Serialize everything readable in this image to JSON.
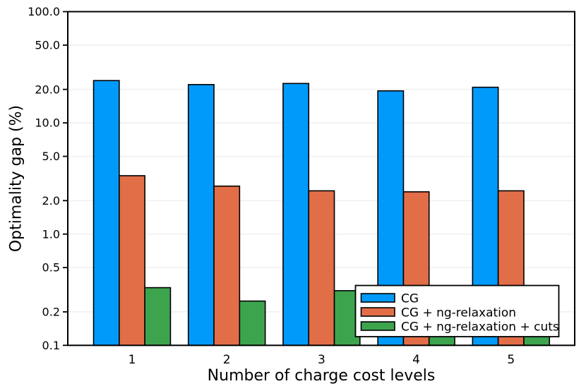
{
  "chart_data": {
    "type": "bar",
    "title": "",
    "xlabel": "Number of charge cost levels",
    "ylabel": "Optimality gap (%)",
    "yscale": "log",
    "ylim": [
      0.1,
      100
    ],
    "grid": true,
    "legend_position": "bottom-right-inside",
    "categories": [
      "1",
      "2",
      "3",
      "4",
      "5"
    ],
    "ytick_values": [
      100,
      50,
      20,
      10,
      5,
      2,
      1,
      0.5,
      0.2,
      0.1
    ],
    "ytick_labels": [
      "100.0",
      "50.0",
      "20.0",
      "10.0",
      "5.0",
      "2.0",
      "1.0",
      "0.5",
      "0.2",
      "0.1"
    ],
    "series": [
      {
        "name": "CG",
        "color": "#009AFA",
        "values": [
          24.0,
          22.1,
          22.6,
          19.4,
          20.9
        ]
      },
      {
        "name": "CG + ng-relaxation",
        "color": "#E26E47",
        "values": [
          3.35,
          2.7,
          2.45,
          2.4,
          2.45
        ]
      },
      {
        "name": "CG + ng-relaxation + cuts",
        "color": "#3DA44E",
        "values": [
          0.33,
          0.25,
          0.31,
          0.13,
          0.13
        ]
      }
    ],
    "colors": {
      "background": "#FFFFFF",
      "axis_frame": "#000000",
      "gridline": "#F0F0F0",
      "bar_border": "#000000",
      "legend_background": "#FFFFFF",
      "legend_border": "#000000",
      "tick_label": "#000000"
    }
  }
}
